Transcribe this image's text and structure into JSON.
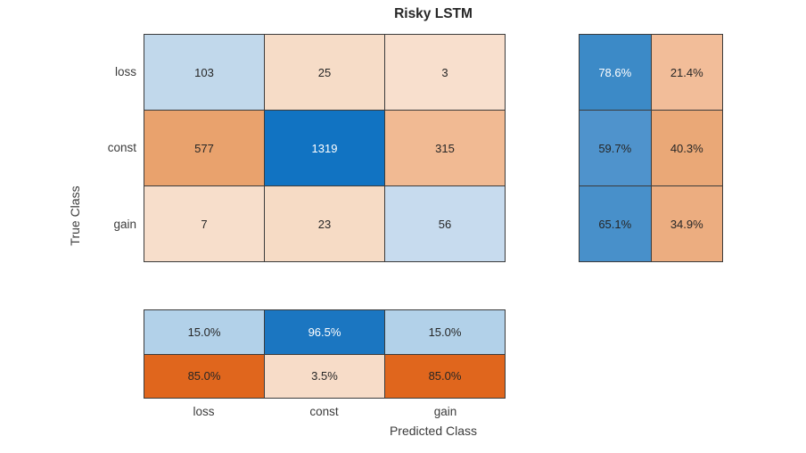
{
  "title": "Risky LSTM",
  "y_axis": {
    "label": "True Class",
    "categories": [
      "loss",
      "const",
      "gain"
    ]
  },
  "x_axis": {
    "label": "Predicted Class",
    "categories": [
      "loss",
      "const",
      "gain"
    ]
  },
  "chart_data": {
    "type": "heatmap",
    "subtype": "confusion-matrix",
    "title": "Risky LSTM",
    "xlabel": "Predicted Class",
    "ylabel": "True Class",
    "classes": [
      "loss",
      "const",
      "gain"
    ],
    "matrix_rows_true_cols_predicted": [
      [
        103,
        25,
        3
      ],
      [
        577,
        1319,
        315
      ],
      [
        7,
        23,
        56
      ]
    ],
    "row_summary_pct_correct_incorrect": [
      [
        78.6,
        21.4
      ],
      [
        59.7,
        40.3
      ],
      [
        65.1,
        34.9
      ]
    ],
    "column_summary_pct_correct_incorrect": [
      [
        15.0,
        96.5,
        15.0
      ],
      [
        85.0,
        3.5,
        85.0
      ]
    ],
    "legend_position": "none",
    "grid": true,
    "colors": {
      "diagonal_base": "#1173c2",
      "off_diagonal_base": "#e0661d",
      "cell_border": "#3b3b3b",
      "text_dark": "#262626",
      "text_light": "#ffffff"
    }
  },
  "cells": {
    "main": [
      {
        "label": "103",
        "bg": "#c1d8eb",
        "fg": "#262626"
      },
      {
        "label": "25",
        "bg": "#f6dcc7",
        "fg": "#262626"
      },
      {
        "label": "3",
        "bg": "#f8dfcd",
        "fg": "#262626"
      },
      {
        "label": "577",
        "bg": "#e9a26d",
        "fg": "#262626"
      },
      {
        "label": "1319",
        "bg": "#1173c2",
        "fg": "#ffffff"
      },
      {
        "label": "315",
        "bg": "#f1ba93",
        "fg": "#262626"
      },
      {
        "label": "7",
        "bg": "#f7decb",
        "fg": "#262626"
      },
      {
        "label": "23",
        "bg": "#f6dbc5",
        "fg": "#262626"
      },
      {
        "label": "56",
        "bg": "#c7dbee",
        "fg": "#262626"
      }
    ],
    "row_summary": [
      {
        "label": "78.6%",
        "bg": "#3c8ac7",
        "fg": "#ffffff"
      },
      {
        "label": "21.4%",
        "bg": "#f2bd99",
        "fg": "#262626"
      },
      {
        "label": "59.7%",
        "bg": "#4f93cc",
        "fg": "#262626"
      },
      {
        "label": "40.3%",
        "bg": "#eaa877",
        "fg": "#262626"
      },
      {
        "label": "65.1%",
        "bg": "#4890ca",
        "fg": "#262626"
      },
      {
        "label": "34.9%",
        "bg": "#ecad80",
        "fg": "#262626"
      }
    ],
    "col_summary": [
      {
        "label": "15.0%",
        "bg": "#b2d1e9",
        "fg": "#262626"
      },
      {
        "label": "96.5%",
        "bg": "#1b76c1",
        "fg": "#ffffff"
      },
      {
        "label": "15.0%",
        "bg": "#b2d1e9",
        "fg": "#262626"
      },
      {
        "label": "85.0%",
        "bg": "#e0661d",
        "fg": "#262626"
      },
      {
        "label": "3.5%",
        "bg": "#f7dcc8",
        "fg": "#262626"
      },
      {
        "label": "85.0%",
        "bg": "#e0661d",
        "fg": "#262626"
      }
    ]
  }
}
